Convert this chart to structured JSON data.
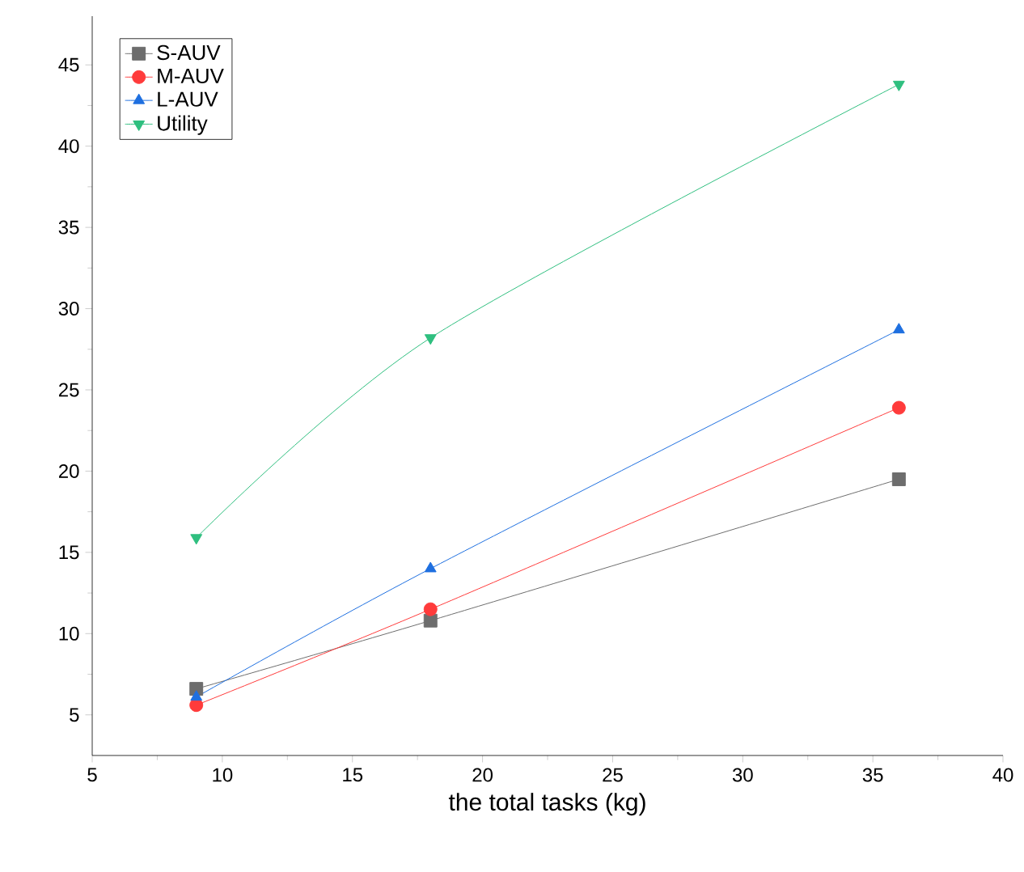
{
  "chart_data": {
    "type": "line",
    "xlabel": "the total tasks (kg)",
    "x": [
      9,
      18,
      36
    ],
    "series": [
      {
        "name": "S-AUV",
        "color": "#6d6d6d",
        "marker": "square",
        "values": [
          6.6,
          10.8,
          19.5
        ]
      },
      {
        "name": "M-AUV",
        "color": "#ff3b3b",
        "marker": "circle",
        "values": [
          5.6,
          11.5,
          23.9
        ]
      },
      {
        "name": "L-AUV",
        "color": "#1e6fe0",
        "marker": "triangle",
        "values": [
          6.1,
          14,
          28.7
        ]
      },
      {
        "name": "Utility",
        "color": "#2fbf7f",
        "marker": "triangle-down",
        "values": [
          15.9,
          28.2,
          43.8
        ]
      }
    ],
    "xlim": [
      5,
      40
    ],
    "ylim": [
      2.5,
      48
    ],
    "xticks": [
      5,
      10,
      15,
      20,
      25,
      30,
      35,
      40
    ],
    "yticks": [
      5,
      10,
      15,
      20,
      25,
      30,
      35,
      40,
      45
    ],
    "grid": false,
    "legend": "top left"
  }
}
